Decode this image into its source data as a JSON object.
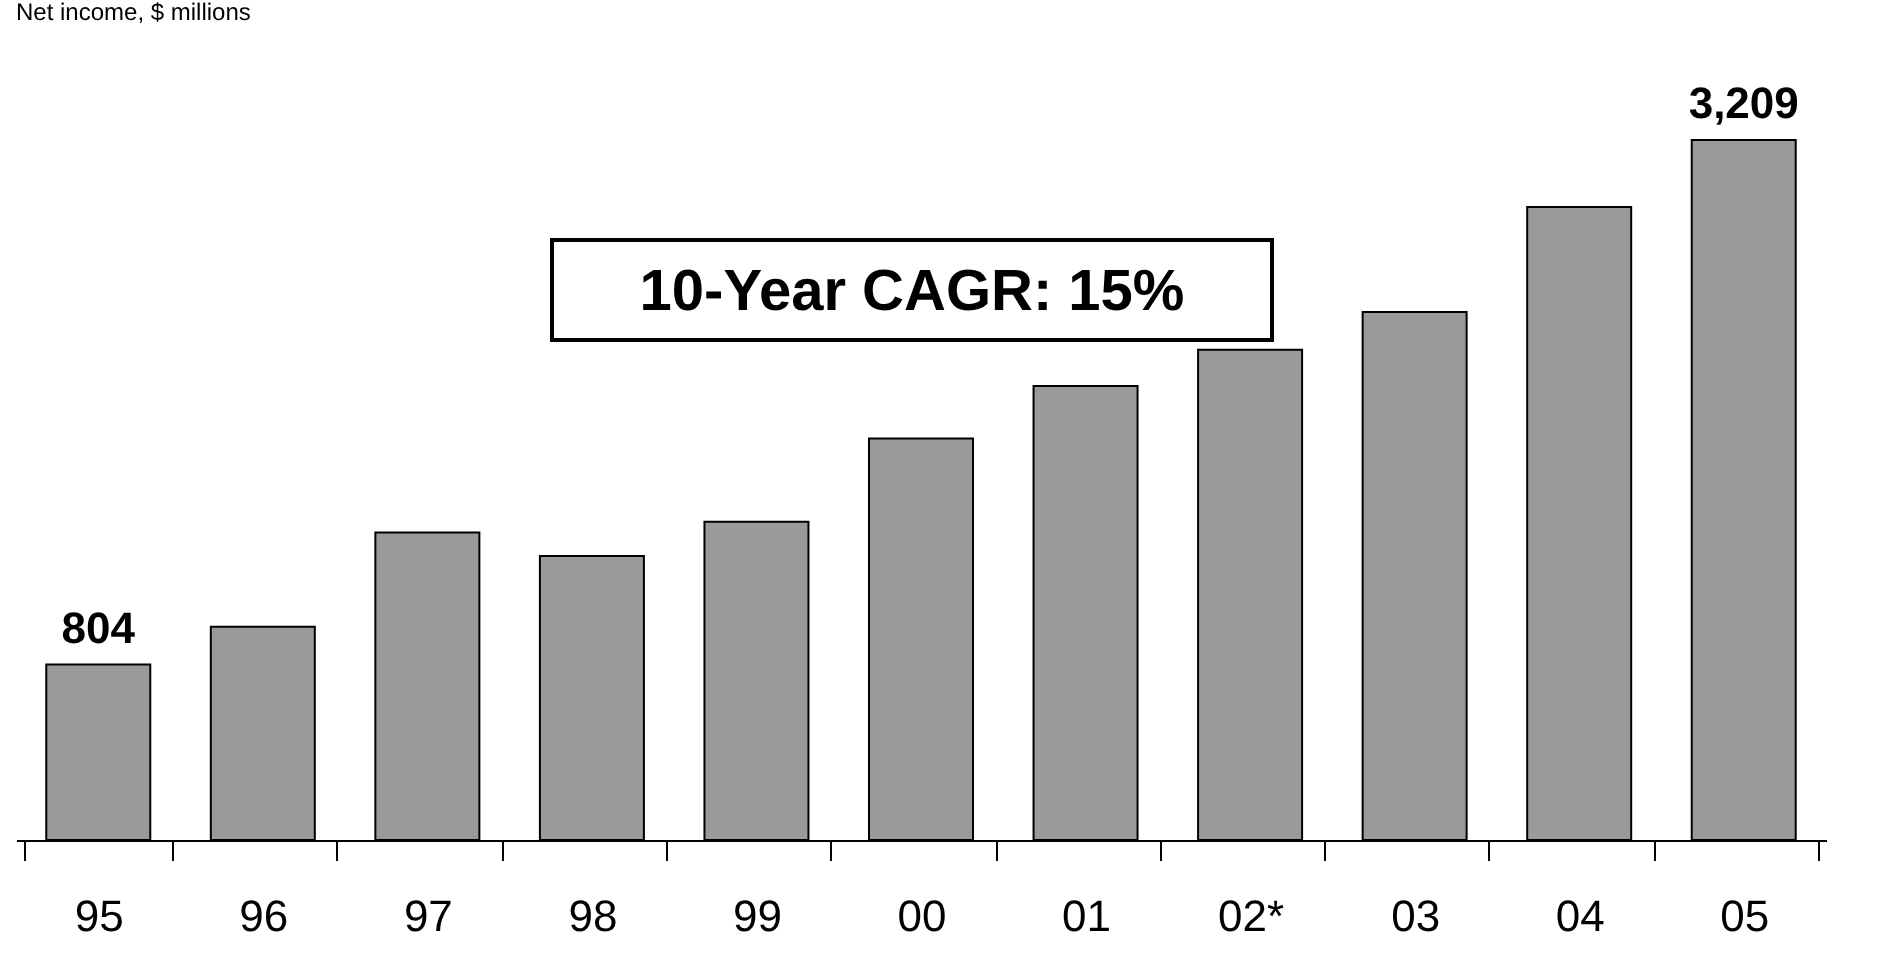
{
  "chart_data": {
    "type": "bar",
    "title": "Net income, $ millions",
    "categories": [
      "95",
      "96",
      "97",
      "98",
      "99",
      "00",
      "01",
      "02*",
      "03",
      "04",
      "05"
    ],
    "values": [
      804,
      978,
      1410,
      1302,
      1459,
      1841,
      2081,
      2247,
      2421,
      2902,
      3209
    ],
    "value_labels": [
      "804",
      null,
      null,
      null,
      null,
      null,
      null,
      null,
      null,
      null,
      "3,209"
    ],
    "color": "#9a9a9a",
    "annotations": [
      "10-Year CAGR: 15%"
    ],
    "grid": false
  }
}
